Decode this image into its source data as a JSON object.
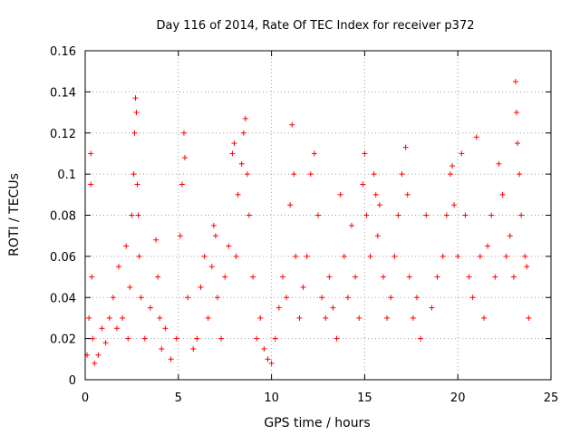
{
  "chart_data": {
    "type": "scatter",
    "title": "Day 116 of 2014, Rate Of TEC Index for receiver p372",
    "xlabel": "GPS time / hours",
    "ylabel": "ROTI / TECUs",
    "xlim": [
      0,
      25
    ],
    "ylim": [
      0,
      0.16
    ],
    "grid": true,
    "marker": "+",
    "marker_color": "#ff0000",
    "x_ticks": [
      0,
      5,
      10,
      15,
      20,
      25
    ],
    "x_tick_labels": [
      "0",
      "5",
      "10",
      "15",
      "20",
      "25"
    ],
    "y_ticks": [
      0,
      0.02,
      0.04,
      0.06,
      0.08,
      0.1,
      0.12,
      0.14,
      0.16
    ],
    "y_tick_labels": [
      "0",
      "0.02",
      "0.04",
      "0.06",
      "0.08",
      "0.1",
      "0.12",
      "0.14",
      "0.16"
    ],
    "series": [
      {
        "name": "ROTI",
        "x": [
          0.1,
          0.2,
          0.3,
          0.3,
          0.35,
          0.4,
          0.5,
          0.7,
          0.9,
          1.1,
          1.3,
          1.5,
          1.7,
          1.8,
          2.0,
          2.2,
          2.3,
          2.4,
          2.5,
          2.6,
          2.65,
          2.7,
          2.75,
          2.8,
          2.85,
          2.9,
          3.0,
          3.2,
          3.5,
          3.8,
          3.9,
          4.0,
          4.1,
          4.3,
          4.6,
          4.9,
          5.1,
          5.2,
          5.3,
          5.35,
          5.5,
          5.8,
          6.0,
          6.2,
          6.4,
          6.6,
          6.8,
          6.9,
          7.0,
          7.1,
          7.3,
          7.5,
          7.7,
          7.9,
          8.0,
          8.1,
          8.2,
          8.4,
          8.5,
          8.6,
          8.7,
          8.8,
          9.0,
          9.2,
          9.4,
          9.6,
          9.8,
          10.0,
          10.2,
          10.4,
          10.6,
          10.8,
          11.0,
          11.1,
          11.2,
          11.3,
          11.5,
          11.7,
          11.9,
          12.1,
          12.3,
          12.5,
          12.7,
          12.9,
          13.1,
          13.3,
          13.5,
          13.7,
          13.9,
          14.1,
          14.3,
          14.5,
          14.7,
          14.9,
          15.0,
          15.1,
          15.3,
          15.5,
          15.6,
          15.7,
          15.8,
          16.0,
          16.2,
          16.4,
          16.6,
          16.8,
          17.0,
          17.2,
          17.3,
          17.4,
          17.6,
          17.8,
          18.0,
          18.3,
          18.6,
          18.9,
          19.2,
          19.4,
          19.6,
          19.7,
          19.8,
          20.0,
          20.2,
          20.4,
          20.6,
          20.8,
          21.0,
          21.2,
          21.4,
          21.6,
          21.8,
          22.0,
          22.2,
          22.4,
          22.6,
          22.8,
          23.0,
          23.1,
          23.15,
          23.2,
          23.3,
          23.4,
          23.6,
          23.7,
          23.8
        ],
        "y": [
          0.012,
          0.03,
          0.095,
          0.11,
          0.05,
          0.02,
          0.008,
          0.012,
          0.025,
          0.018,
          0.03,
          0.04,
          0.025,
          0.055,
          0.03,
          0.065,
          0.02,
          0.045,
          0.08,
          0.1,
          0.12,
          0.137,
          0.13,
          0.095,
          0.08,
          0.06,
          0.04,
          0.02,
          0.035,
          0.068,
          0.05,
          0.03,
          0.015,
          0.025,
          0.01,
          0.02,
          0.07,
          0.095,
          0.12,
          0.108,
          0.04,
          0.015,
          0.02,
          0.045,
          0.06,
          0.03,
          0.055,
          0.075,
          0.07,
          0.04,
          0.02,
          0.05,
          0.065,
          0.11,
          0.115,
          0.06,
          0.09,
          0.105,
          0.12,
          0.127,
          0.1,
          0.08,
          0.05,
          0.02,
          0.03,
          0.015,
          0.01,
          0.008,
          0.02,
          0.035,
          0.05,
          0.04,
          0.085,
          0.124,
          0.1,
          0.06,
          0.03,
          0.045,
          0.06,
          0.1,
          0.11,
          0.08,
          0.04,
          0.03,
          0.05,
          0.035,
          0.02,
          0.09,
          0.06,
          0.04,
          0.075,
          0.05,
          0.03,
          0.095,
          0.11,
          0.08,
          0.06,
          0.1,
          0.09,
          0.07,
          0.085,
          0.05,
          0.03,
          0.04,
          0.06,
          0.08,
          0.1,
          0.113,
          0.09,
          0.05,
          0.03,
          0.04,
          0.02,
          0.08,
          0.035,
          0.05,
          0.06,
          0.08,
          0.1,
          0.104,
          0.085,
          0.06,
          0.11,
          0.08,
          0.05,
          0.04,
          0.118,
          0.06,
          0.03,
          0.065,
          0.08,
          0.05,
          0.105,
          0.09,
          0.06,
          0.07,
          0.05,
          0.145,
          0.13,
          0.115,
          0.1,
          0.08,
          0.06,
          0.055,
          0.03
        ]
      }
    ]
  }
}
